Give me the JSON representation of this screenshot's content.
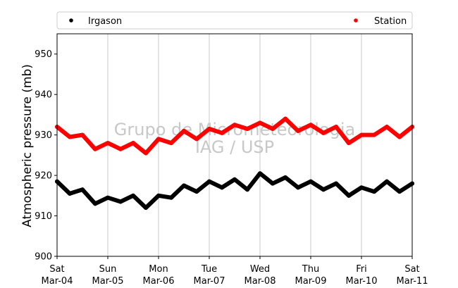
{
  "chart_data": {
    "type": "line",
    "ylabel": "Atmospheric pressure (mb)",
    "ylim": [
      900,
      955
    ],
    "yticks": [
      900,
      910,
      920,
      930,
      940,
      950
    ],
    "xlim": [
      "2017-03-04",
      "2017-03-11"
    ],
    "xticks": [
      {
        "day": "Sat",
        "date": "Mar-04"
      },
      {
        "day": "Sun",
        "date": "Mar-05"
      },
      {
        "day": "Mon",
        "date": "Mar-06"
      },
      {
        "day": "Tue",
        "date": "Mar-07"
      },
      {
        "day": "Wed",
        "date": "Mar-08"
      },
      {
        "day": "Thu",
        "date": "Mar-09"
      },
      {
        "day": "Fri",
        "date": "Mar-10"
      },
      {
        "day": "Sat",
        "date": "Mar-11"
      }
    ],
    "grid": "vertical",
    "legend_position": "top",
    "watermark": [
      "Grupo de Micrometeorologia",
      "IAG / USP"
    ],
    "series": [
      {
        "name": "Irgason",
        "color": "#000000",
        "x_days": [
          0,
          0.25,
          0.5,
          0.75,
          1,
          1.25,
          1.5,
          1.75,
          2,
          2.25,
          2.5,
          2.75,
          3,
          3.25,
          3.5,
          3.75,
          4,
          4.25,
          4.5,
          4.75,
          5,
          5.25,
          5.5,
          5.75,
          6,
          6.25,
          6.5,
          6.75,
          7
        ],
        "values": [
          918.5,
          915.5,
          916.5,
          913.0,
          914.5,
          913.5,
          915.0,
          912.0,
          915.0,
          914.5,
          917.5,
          916.0,
          918.5,
          917.0,
          919.0,
          916.5,
          920.5,
          918.0,
          919.5,
          917.0,
          918.5,
          916.5,
          918.0,
          915.0,
          917.0,
          916.0,
          918.5,
          916.0,
          918.0
        ]
      },
      {
        "name": "Station",
        "color": "#ff0000",
        "x_days": [
          0,
          0.25,
          0.5,
          0.75,
          1,
          1.25,
          1.5,
          1.75,
          2,
          2.25,
          2.5,
          2.75,
          3,
          3.25,
          3.5,
          3.75,
          4,
          4.25,
          4.5,
          4.75,
          5,
          5.25,
          5.5,
          5.75,
          6,
          6.25,
          6.5,
          6.75,
          7
        ],
        "values": [
          932.0,
          929.5,
          930.0,
          926.5,
          928.0,
          926.5,
          928.0,
          925.5,
          929.0,
          928.0,
          931.0,
          929.0,
          931.5,
          930.5,
          932.5,
          931.5,
          933.0,
          931.5,
          934.0,
          931.0,
          932.5,
          930.5,
          932.0,
          928.0,
          930.0,
          930.0,
          932.0,
          929.5,
          932.0
        ]
      }
    ]
  }
}
